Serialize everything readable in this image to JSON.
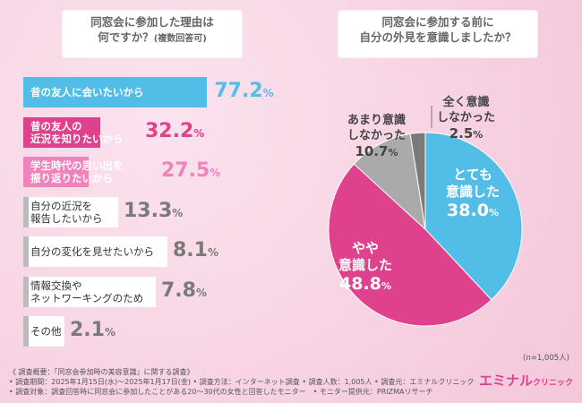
{
  "left_question": {
    "line1": "同窓会に参加した理由は",
    "line2": "何ですか？",
    "line3": "(複数回答可)"
  },
  "right_question": {
    "line1": "同窓会に参加する前に",
    "line2": "自分の外見を意識しましたか？"
  },
  "sample_size": "(n=1,005人)",
  "footer": {
    "line1": "《 調査概要：「同窓会参加時の美容意識」に関する調査》",
    "line2": "• 調査期間：2025年1月15日(水)～2025年1月17日(金) • 調査方法：インターネット調査 • 調査人数：1,005人 • 調査元：エミナルクリニック",
    "line3": "• 調査対象：調査回答時に同窓会に参加したことがある20～30代の女性と回答したモニター　• モニター提供元：PRIZMAリサーチ"
  },
  "logo": {
    "main": "エミナル",
    "sub": "クリニック"
  },
  "colors": {
    "blue": "#52bde6",
    "pink": "#e0418c",
    "light_pink": "#f083bb",
    "gray": "#aaaaaa",
    "dark_gray": "#7a7a7a"
  },
  "chart_data": [
    {
      "type": "bar",
      "orientation": "horizontal",
      "categories": [
        "昔の友人に会いたいから",
        "昔の友人の\n近況を知りたいから",
        "学生時代の思い出を\n振り返りたいから",
        "自分の近況を\n報告したいから",
        "自分の変化を見せたいから",
        "情報交換や\nネットワーキングのため",
        "その他"
      ],
      "values": [
        77.2,
        32.2,
        27.5,
        13.3,
        8.1,
        7.8,
        2.1
      ],
      "value_labels": [
        "77.2",
        "32.2",
        "27.5",
        "13.3",
        "8.1",
        "7.8",
        "2.1"
      ],
      "unit": "%",
      "xlim": [
        0,
        100
      ]
    },
    {
      "type": "pie",
      "categories": [
        "とても\n意識した",
        "やや\n意識した",
        "あまり意識\nしなかった",
        "全く意識\nしなかった"
      ],
      "values": [
        38.0,
        48.8,
        10.7,
        2.5
      ],
      "value_labels": [
        "38.0",
        "48.8",
        "10.7",
        "2.5"
      ],
      "unit": "%"
    }
  ]
}
